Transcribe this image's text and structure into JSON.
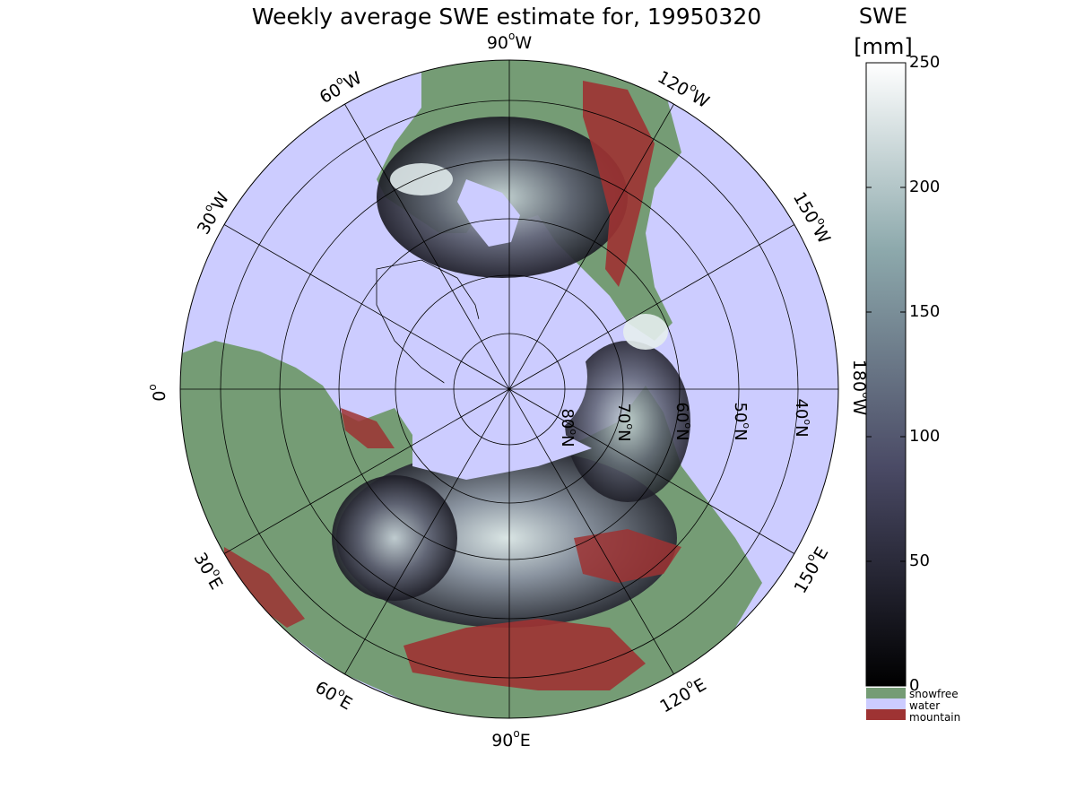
{
  "title": "Weekly average SWE estimate for, 19950320",
  "map": {
    "projection": "north polar stereographic",
    "longitude_labels": [
      {
        "lon": "90°W",
        "text": "90",
        "sup": "o",
        "hemi": "W"
      },
      {
        "lon": "60°W",
        "text": "60",
        "sup": "o",
        "hemi": "W"
      },
      {
        "lon": "30°W",
        "text": "30",
        "sup": "o",
        "hemi": "W"
      },
      {
        "lon": "0°",
        "text": "0",
        "sup": "o",
        "hemi": ""
      },
      {
        "lon": "30°E",
        "text": "30",
        "sup": "o",
        "hemi": "E"
      },
      {
        "lon": "60°E",
        "text": "60",
        "sup": "o",
        "hemi": "E"
      },
      {
        "lon": "90°E",
        "text": "90",
        "sup": "o",
        "hemi": "E"
      },
      {
        "lon": "120°E",
        "text": "120",
        "sup": "o",
        "hemi": "E"
      },
      {
        "lon": "150°E",
        "text": "150",
        "sup": "o",
        "hemi": "E"
      },
      {
        "lon": "180°W",
        "text": "180",
        "sup": "o",
        "hemi": "W"
      },
      {
        "lon": "150°W",
        "text": "150",
        "sup": "o",
        "hemi": "W"
      },
      {
        "lon": "120°W",
        "text": "120",
        "sup": "o",
        "hemi": "W"
      }
    ],
    "latitude_labels": [
      {
        "lat": 80,
        "text": "80",
        "sup": "o",
        "hemi": "N"
      },
      {
        "lat": 70,
        "text": "70",
        "sup": "o",
        "hemi": "N"
      },
      {
        "lat": 60,
        "text": "60",
        "sup": "o",
        "hemi": "N"
      },
      {
        "lat": 50,
        "text": "50",
        "sup": "o",
        "hemi": "N"
      },
      {
        "lat": 40,
        "text": "40",
        "sup": "o",
        "hemi": "N"
      }
    ],
    "colors": {
      "water": "#ccccff",
      "snowfree": "#759c75",
      "mountain": "#9e3333",
      "grid": "#000000"
    }
  },
  "colorbar": {
    "title_line1": "SWE",
    "title_line2": "[mm]",
    "min": 0,
    "max": 250,
    "ticks": [
      "0",
      "50",
      "100",
      "150",
      "200",
      "250"
    ],
    "tick_values": [
      0,
      50,
      100,
      150,
      200,
      250
    ],
    "colormap": "bone (dark to white)",
    "legend": [
      {
        "label": "snowfree",
        "color": "#759c75"
      },
      {
        "label": "water",
        "color": "#ccccff"
      },
      {
        "label": "mountain",
        "color": "#9e3333"
      }
    ]
  }
}
